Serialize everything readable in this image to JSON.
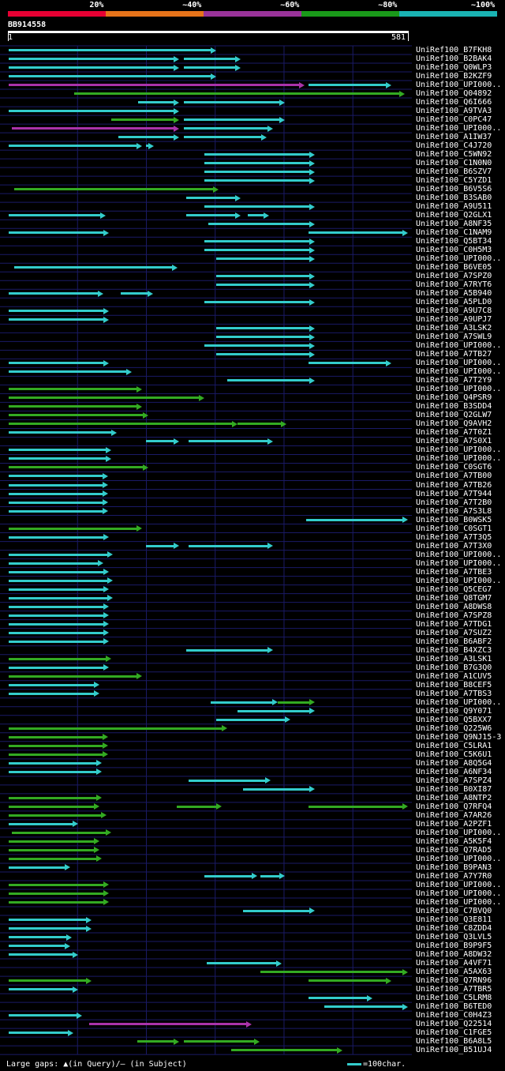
{
  "legend": {
    "labels": [
      "20%",
      "~40%",
      "~60%",
      "~80%",
      "~100%"
    ],
    "colors": [
      "#e60033",
      "#e6731a",
      "#993399",
      "#1a991a",
      "#1ab3b3"
    ]
  },
  "query": {
    "id": "BB914558",
    "start": "1",
    "end": "581",
    "length": 581
  },
  "colors": {
    "cyan": "#33cccc",
    "green": "#33aa22",
    "magenta": "#aa33aa",
    "grid": "#1a1a66"
  },
  "hits": [
    {
      "name": "UniRef100_B7FKH8",
      "segs": [
        [
          1,
          303,
          "c"
        ]
      ]
    },
    {
      "name": "UniRef100_B2BAK4",
      "segs": [
        [
          1,
          249,
          "c"
        ],
        [
          255,
          338,
          "c"
        ]
      ]
    },
    {
      "name": "UniRef100_Q0WLP3",
      "segs": [
        [
          1,
          249,
          "c"
        ],
        [
          255,
          338,
          "c"
        ]
      ]
    },
    {
      "name": "UniRef100_B2KZF9",
      "segs": [
        [
          1,
          303,
          "c"
        ]
      ]
    },
    {
      "name": "UniRef100_UPI000..",
      "segs": [
        [
          1,
          431,
          "m"
        ],
        [
          436,
          557,
          "c"
        ]
      ]
    },
    {
      "name": "UniRef100_Q04892",
      "segs": [
        [
          96,
          576,
          "g"
        ]
      ]
    },
    {
      "name": "UniRef100_Q6I666",
      "segs": [
        [
          189,
          249,
          "c"
        ],
        [
          255,
          402,
          "c"
        ]
      ]
    },
    {
      "name": "UniRef100_A9TVA3",
      "segs": [
        [
          1,
          249,
          "c"
        ]
      ]
    },
    {
      "name": "UniRef100_C0PC47",
      "segs": [
        [
          150,
          249,
          "g"
        ],
        [
          255,
          402,
          "c"
        ]
      ]
    },
    {
      "name": "UniRef100_UPI000..",
      "segs": [
        [
          6,
          249,
          "m"
        ],
        [
          255,
          385,
          "c"
        ]
      ]
    },
    {
      "name": "UniRef100_A1IW37",
      "segs": [
        [
          160,
          249,
          "c"
        ],
        [
          255,
          376,
          "c"
        ]
      ]
    },
    {
      "name": "UniRef100_C4J720",
      "segs": [
        [
          1,
          195,
          "c"
        ],
        [
          200,
          212,
          "c"
        ]
      ]
    },
    {
      "name": "UniRef100_C5WN92",
      "segs": [
        [
          285,
          446,
          "c"
        ]
      ]
    },
    {
      "name": "UniRef100_C1N0N0",
      "segs": [
        [
          285,
          446,
          "c"
        ]
      ]
    },
    {
      "name": "UniRef100_B6SZV7",
      "segs": [
        [
          285,
          446,
          "c"
        ]
      ]
    },
    {
      "name": "UniRef100_C5YZD1",
      "segs": [
        [
          285,
          446,
          "c"
        ]
      ]
    },
    {
      "name": "UniRef100_B6V5S6",
      "segs": [
        [
          9,
          306,
          "g"
        ]
      ]
    },
    {
      "name": "UniRef100_B3SAB0",
      "segs": [
        [
          259,
          338,
          "c"
        ]
      ]
    },
    {
      "name": "UniRef100_A9U511",
      "segs": [
        [
          285,
          446,
          "c"
        ]
      ]
    },
    {
      "name": "UniRef100_Q2GLX1",
      "segs": [
        [
          1,
          142,
          "c"
        ],
        [
          259,
          338,
          "c"
        ],
        [
          348,
          379,
          "c"
        ]
      ]
    },
    {
      "name": "UniRef100_A8NF35",
      "segs": [
        [
          291,
          446,
          "c"
        ]
      ]
    },
    {
      "name": "UniRef100_C1NAM9",
      "segs": [
        [
          1,
          147,
          "c"
        ],
        [
          436,
          581,
          "c"
        ]
      ]
    },
    {
      "name": "UniRef100_Q5BT34",
      "segs": [
        [
          285,
          446,
          "c"
        ]
      ]
    },
    {
      "name": "UniRef100_C0H5M3",
      "segs": [
        [
          285,
          446,
          "c"
        ]
      ]
    },
    {
      "name": "UniRef100_UPI000..",
      "segs": [
        [
          303,
          446,
          "c"
        ]
      ]
    },
    {
      "name": "UniRef100_B6VE05",
      "segs": [
        [
          9,
          246,
          "c"
        ]
      ]
    },
    {
      "name": "UniRef100_A7SPZ0",
      "segs": [
        [
          303,
          446,
          "c"
        ]
      ]
    },
    {
      "name": "UniRef100_A7RYT6",
      "segs": [
        [
          303,
          446,
          "c"
        ]
      ]
    },
    {
      "name": "UniRef100_A5B940",
      "segs": [
        [
          1,
          138,
          "c"
        ],
        [
          164,
          211,
          "c"
        ]
      ]
    },
    {
      "name": "UniRef100_A5PLD0",
      "segs": [
        [
          285,
          446,
          "c"
        ]
      ]
    },
    {
      "name": "UniRef100_A9U7C8",
      "segs": [
        [
          1,
          147,
          "c"
        ]
      ]
    },
    {
      "name": "UniRef100_A9UPJ7",
      "segs": [
        [
          1,
          147,
          "c"
        ]
      ]
    },
    {
      "name": "UniRef100_A3LSK2",
      "segs": [
        [
          303,
          446,
          "c"
        ]
      ]
    },
    {
      "name": "UniRef100_A7SWL9",
      "segs": [
        [
          303,
          446,
          "c"
        ]
      ]
    },
    {
      "name": "UniRef100_UPI000..",
      "segs": [
        [
          285,
          446,
          "c"
        ]
      ]
    },
    {
      "name": "UniRef100_A7TB27",
      "segs": [
        [
          303,
          446,
          "c"
        ]
      ]
    },
    {
      "name": "UniRef100_UPI000..",
      "segs": [
        [
          1,
          147,
          "c"
        ],
        [
          436,
          557,
          "c"
        ]
      ]
    },
    {
      "name": "UniRef100_UPI000..",
      "segs": [
        [
          1,
          180,
          "c"
        ]
      ]
    },
    {
      "name": "UniRef100_A7T2Y9",
      "segs": [
        [
          318,
          446,
          "c"
        ]
      ]
    },
    {
      "name": "UniRef100_UPI000..",
      "segs": [
        [
          1,
          195,
          "g"
        ]
      ]
    },
    {
      "name": "UniRef100_Q4PSR9",
      "segs": [
        [
          1,
          285,
          "g"
        ]
      ]
    },
    {
      "name": "UniRef100_B3SDD4",
      "segs": [
        [
          1,
          195,
          "g"
        ]
      ]
    },
    {
      "name": "UniRef100_Q2GLW7",
      "segs": [
        [
          1,
          204,
          "g"
        ]
      ]
    },
    {
      "name": "UniRef100_Q9AVH2",
      "segs": [
        [
          1,
          333,
          "g"
        ],
        [
          333,
          405,
          "g"
        ]
      ]
    },
    {
      "name": "UniRef100_A7T0Z1",
      "segs": [
        [
          1,
          158,
          "c"
        ]
      ]
    },
    {
      "name": "UniRef100_A7S0X1",
      "segs": [
        [
          200,
          249,
          "c"
        ],
        [
          262,
          385,
          "c"
        ]
      ]
    },
    {
      "name": "UniRef100_UPI000..",
      "segs": [
        [
          1,
          150,
          "c"
        ]
      ]
    },
    {
      "name": "UniRef100_UPI000..",
      "segs": [
        [
          1,
          150,
          "c"
        ]
      ]
    },
    {
      "name": "UniRef100_C0SGT6",
      "segs": [
        [
          1,
          204,
          "g"
        ]
      ]
    },
    {
      "name": "UniRef100_A7TB00",
      "segs": [
        [
          1,
          145,
          "c"
        ]
      ]
    },
    {
      "name": "UniRef100_A7TB26",
      "segs": [
        [
          1,
          145,
          "c"
        ]
      ]
    },
    {
      "name": "UniRef100_A7T944",
      "segs": [
        [
          1,
          145,
          "c"
        ]
      ]
    },
    {
      "name": "UniRef100_A7T2B0",
      "segs": [
        [
          1,
          145,
          "c"
        ]
      ]
    },
    {
      "name": "UniRef100_A7S3L8",
      "segs": [
        [
          1,
          145,
          "c"
        ]
      ]
    },
    {
      "name": "UniRef100_B0WSK5",
      "segs": [
        [
          433,
          581,
          "c"
        ]
      ]
    },
    {
      "name": "UniRef100_C0SGT1",
      "segs": [
        [
          1,
          195,
          "g"
        ]
      ]
    },
    {
      "name": "UniRef100_A7T3Q5",
      "segs": [
        [
          1,
          147,
          "c"
        ]
      ]
    },
    {
      "name": "UniRef100_A7T3X0",
      "segs": [
        [
          200,
          249,
          "c"
        ],
        [
          262,
          385,
          "c"
        ]
      ]
    },
    {
      "name": "UniRef100_UPI000..",
      "segs": [
        [
          1,
          152,
          "c"
        ]
      ]
    },
    {
      "name": "UniRef100_UPI000..",
      "segs": [
        [
          1,
          138,
          "c"
        ]
      ]
    },
    {
      "name": "UniRef100_A7TBE3",
      "segs": [
        [
          1,
          147,
          "c"
        ]
      ]
    },
    {
      "name": "UniRef100_UPI000..",
      "segs": [
        [
          1,
          152,
          "c"
        ]
      ]
    },
    {
      "name": "UniRef100_Q5CEG7",
      "segs": [
        [
          1,
          147,
          "c"
        ]
      ]
    },
    {
      "name": "UniRef100_Q8TGM7",
      "segs": [
        [
          1,
          152,
          "c"
        ]
      ]
    },
    {
      "name": "UniRef100_A8DWS8",
      "segs": [
        [
          1,
          147,
          "c"
        ]
      ]
    },
    {
      "name": "UniRef100_A7SPZ8",
      "segs": [
        [
          1,
          147,
          "c"
        ]
      ]
    },
    {
      "name": "UniRef100_A7TDG1",
      "segs": [
        [
          1,
          147,
          "c"
        ]
      ]
    },
    {
      "name": "UniRef100_A7SUZ2",
      "segs": [
        [
          1,
          147,
          "c"
        ]
      ]
    },
    {
      "name": "UniRef100_B6ABF2",
      "segs": [
        [
          1,
          147,
          "c"
        ]
      ]
    },
    {
      "name": "UniRef100_B4XZC3",
      "segs": [
        [
          259,
          385,
          "c"
        ]
      ]
    },
    {
      "name": "UniRef100_A3LSK1",
      "segs": [
        [
          1,
          150,
          "g"
        ]
      ]
    },
    {
      "name": "UniRef100_B7G3Q0",
      "segs": [
        [
          1,
          147,
          "c"
        ]
      ]
    },
    {
      "name": "UniRef100_A1CUV5",
      "segs": [
        [
          1,
          195,
          "g"
        ]
      ]
    },
    {
      "name": "UniRef100_B8CEF5",
      "segs": [
        [
          1,
          133,
          "c"
        ]
      ]
    },
    {
      "name": "UniRef100_A7TBS3",
      "segs": [
        [
          1,
          133,
          "c"
        ]
      ]
    },
    {
      "name": "UniRef100_UPI000..",
      "segs": [
        [
          294,
          392,
          "c"
        ],
        [
          392,
          446,
          "g"
        ]
      ]
    },
    {
      "name": "UniRef100_Q9Y071",
      "segs": [
        [
          333,
          446,
          "c"
        ]
      ]
    },
    {
      "name": "UniRef100_Q5BXX7",
      "segs": [
        [
          303,
          410,
          "c"
        ]
      ]
    },
    {
      "name": "UniRef100_Q225W6",
      "segs": [
        [
          1,
          318,
          "g"
        ]
      ]
    },
    {
      "name": "UniRef100_Q9NJ15-3",
      "segs": [
        [
          1,
          145,
          "g"
        ]
      ]
    },
    {
      "name": "UniRef100_C5LRA1",
      "segs": [
        [
          1,
          145,
          "g"
        ]
      ]
    },
    {
      "name": "UniRef100_C5K6U1",
      "segs": [
        [
          1,
          145,
          "g"
        ]
      ]
    },
    {
      "name": "UniRef100_A8Q5G4",
      "segs": [
        [
          1,
          136,
          "c"
        ]
      ]
    },
    {
      "name": "UniRef100_A6NF34",
      "segs": [
        [
          1,
          136,
          "c"
        ]
      ]
    },
    {
      "name": "UniRef100_A7SPZ4",
      "segs": [
        [
          262,
          382,
          "c"
        ]
      ]
    },
    {
      "name": "UniRef100_B0XI87",
      "segs": [
        [
          342,
          446,
          "c"
        ]
      ]
    },
    {
      "name": "UniRef100_A8NTP2",
      "segs": [
        [
          1,
          136,
          "g"
        ]
      ]
    },
    {
      "name": "UniRef100_Q7RFQ4",
      "segs": [
        [
          1,
          133,
          "g"
        ],
        [
          245,
          310,
          "g"
        ],
        [
          436,
          581,
          "g"
        ]
      ]
    },
    {
      "name": "UniRef100_A7AR26",
      "segs": [
        [
          1,
          143,
          "g"
        ]
      ]
    },
    {
      "name": "UniRef100_A2PZF1",
      "segs": [
        [
          1,
          102,
          "c"
        ]
      ]
    },
    {
      "name": "UniRef100_UPI000..",
      "segs": [
        [
          6,
          150,
          "g"
        ]
      ]
    },
    {
      "name": "UniRef100_A5K5F4",
      "segs": [
        [
          1,
          133,
          "g"
        ]
      ]
    },
    {
      "name": "UniRef100_Q7RAD5",
      "segs": [
        [
          1,
          133,
          "g"
        ]
      ]
    },
    {
      "name": "UniRef100_UPI000..",
      "segs": [
        [
          1,
          136,
          "g"
        ]
      ]
    },
    {
      "name": "UniRef100_B9PAN3",
      "segs": [
        [
          1,
          90,
          "c"
        ]
      ]
    },
    {
      "name": "UniRef100_A7Y7R0",
      "segs": [
        [
          285,
          362,
          "c"
        ],
        [
          367,
          402,
          "c"
        ]
      ]
    },
    {
      "name": "UniRef100_UPI000..",
      "segs": [
        [
          1,
          147,
          "g"
        ]
      ]
    },
    {
      "name": "UniRef100_UPI000..",
      "segs": [
        [
          1,
          147,
          "g"
        ]
      ]
    },
    {
      "name": "UniRef100_UPI000..",
      "segs": [
        [
          1,
          147,
          "g"
        ]
      ]
    },
    {
      "name": "UniRef100_C7BVQ0",
      "segs": [
        [
          342,
          446,
          "c"
        ]
      ]
    },
    {
      "name": "UniRef100_Q3E811",
      "segs": [
        [
          1,
          121,
          "c"
        ]
      ]
    },
    {
      "name": "UniRef100_C8ZDD4",
      "segs": [
        [
          1,
          121,
          "c"
        ]
      ]
    },
    {
      "name": "UniRef100_Q3LVL5",
      "segs": [
        [
          1,
          93,
          "c"
        ]
      ]
    },
    {
      "name": "UniRef100_B9P9F5",
      "segs": [
        [
          1,
          90,
          "c"
        ]
      ]
    },
    {
      "name": "UniRef100_A8DW32",
      "segs": [
        [
          1,
          102,
          "c"
        ]
      ]
    },
    {
      "name": "UniRef100_A4VF71",
      "segs": [
        [
          289,
          398,
          "c"
        ]
      ]
    },
    {
      "name": "UniRef100_A5AX63",
      "segs": [
        [
          367,
          581,
          "g"
        ]
      ]
    },
    {
      "name": "UniRef100_Q7RN96",
      "segs": [
        [
          1,
          121,
          "g"
        ],
        [
          436,
          557,
          "g"
        ]
      ]
    },
    {
      "name": "UniRef100_A7TBR5",
      "segs": [
        [
          1,
          102,
          "c"
        ]
      ]
    },
    {
      "name": "UniRef100_C5LRM8",
      "segs": [
        [
          436,
          529,
          "c"
        ]
      ]
    },
    {
      "name": "UniRef100_B6TED0",
      "segs": [
        [
          460,
          581,
          "c"
        ]
      ]
    },
    {
      "name": "UniRef100_C0H4Z3",
      "segs": [
        [
          1,
          108,
          "c"
        ]
      ]
    },
    {
      "name": "UniRef100_Q22514",
      "segs": [
        [
          118,
          354,
          "m"
        ]
      ]
    },
    {
      "name": "UniRef100_C1FGE5",
      "segs": [
        [
          1,
          95,
          "c"
        ]
      ]
    },
    {
      "name": "UniRef100_B6A8L5",
      "segs": [
        [
          188,
          249,
          "g"
        ],
        [
          255,
          366,
          "g"
        ]
      ]
    },
    {
      "name": "UniRef100_B51UJ4",
      "segs": [
        [
          324,
          486,
          "g"
        ]
      ]
    }
  ],
  "footer": {
    "large_gaps": "Large gaps: ▲(in Query)/— (in Subject)",
    "scale_note": "=100char."
  }
}
